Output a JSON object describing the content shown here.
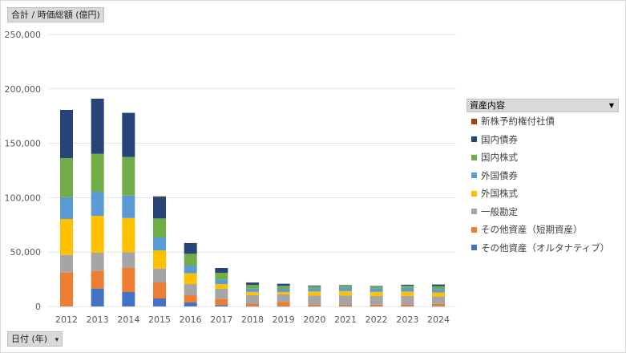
{
  "field_buttons": {
    "value": "合計 / 時価総額 (億円)",
    "axis": "日付 (年)",
    "dropdown_glyph": "▾"
  },
  "legend": {
    "title": "資産内容"
  },
  "chart_data": {
    "type": "bar",
    "stacked": true,
    "title": "",
    "ylabel": "合計 / 時価総額 (億円)",
    "xlabel": "日付 (年)",
    "ylim": [
      0,
      250000
    ],
    "yticks": [
      "0",
      "50,000",
      "100,000",
      "150,000",
      "200,000",
      "250,000"
    ],
    "grid": true,
    "legend_position": "right",
    "categories": [
      "2012",
      "2013",
      "2014",
      "2015",
      "2016",
      "2017",
      "2018",
      "2019",
      "2020",
      "2021",
      "2022",
      "2023",
      "2024"
    ],
    "series": [
      {
        "name": "その他資産（オルタナティブ）",
        "color": "#4472C4",
        "values": [
          0,
          16500,
          13300,
          7400,
          3700,
          1300,
          300,
          200,
          300,
          300,
          300,
          300,
          300
        ]
      },
      {
        "name": "その他資産（短期資産）",
        "color": "#ED7D31",
        "values": [
          31200,
          16200,
          22100,
          14700,
          6600,
          5600,
          2300,
          4000,
          1500,
          1500,
          1300,
          1500,
          2000
        ]
      },
      {
        "name": "一般勘定",
        "color": "#A5A5A5",
        "values": [
          16200,
          16700,
          14500,
          12800,
          10300,
          9300,
          7800,
          6900,
          8300,
          8300,
          8000,
          8000,
          7000
        ]
      },
      {
        "name": "外国株式",
        "color": "#FFC000",
        "values": [
          33000,
          33900,
          31400,
          16500,
          9900,
          4400,
          3000,
          2200,
          3700,
          4000,
          3800,
          3900,
          3600
        ]
      },
      {
        "name": "外国債券",
        "color": "#5B9BD5",
        "values": [
          20000,
          22200,
          20700,
          12000,
          7100,
          4200,
          3000,
          2900,
          3100,
          3300,
          3100,
          3300,
          3200
        ]
      },
      {
        "name": "国内株式",
        "color": "#70AD47",
        "values": [
          36000,
          34800,
          35400,
          17500,
          10800,
          6200,
          3400,
          2800,
          1800,
          1700,
          1800,
          2100,
          2500
        ]
      },
      {
        "name": "国内債券",
        "color": "#264478",
        "values": [
          44300,
          50700,
          40600,
          19900,
          9900,
          4400,
          2200,
          1900,
          600,
          500,
          500,
          900,
          1600
        ]
      },
      {
        "name": "新株予約権付社債",
        "color": "#9E480E",
        "values": [
          0,
          0,
          0,
          500,
          0,
          0,
          0,
          0,
          0,
          0,
          0,
          0,
          0
        ]
      }
    ]
  }
}
